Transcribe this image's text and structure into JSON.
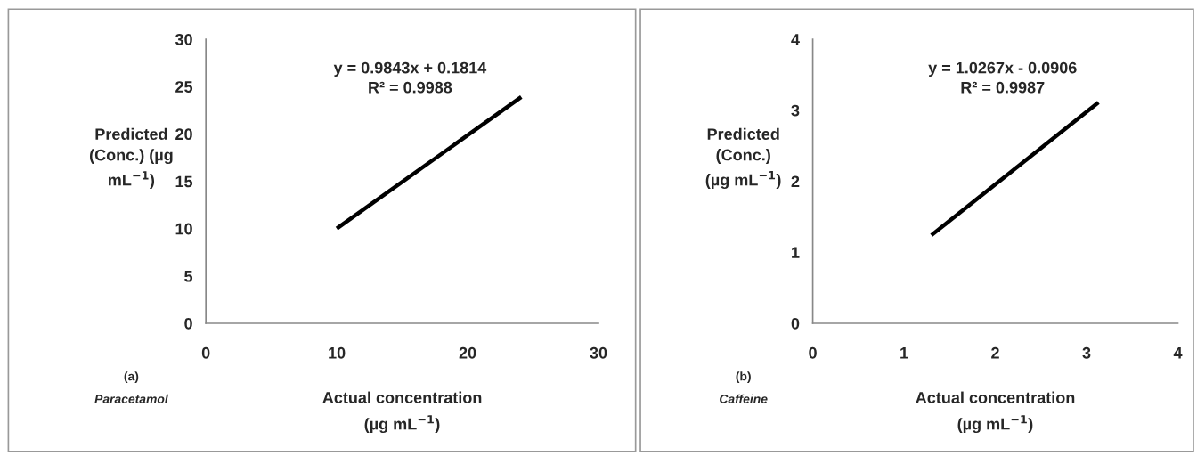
{
  "chart_data": [
    {
      "type": "line",
      "xlabel": "Actual concentration\n(µg mL$^{−1}$)",
      "ylabel": "Predicted\n(Conc.) (µg\nmL$^{−1}$)",
      "annotations": [
        "y = 0.9843x + 0.1814\nR² = 0.9988",
        "(a)",
        "Paracetamol"
      ],
      "x": [
        10,
        24.1
      ],
      "series": [
        {
          "color": "#000000",
          "values": [
            10,
            23.9
          ]
        }
      ],
      "xlim": [
        0,
        30
      ],
      "xticks": [
        0,
        10,
        20,
        30
      ],
      "ylim": [
        0,
        30
      ],
      "yticks": [
        0,
        5,
        10,
        15,
        20,
        25,
        30
      ],
      "grid": false,
      "marker": "none",
      "line_style": "solid"
    },
    {
      "type": "line",
      "xlabel": "Actual concentration\n(µg mL$^{−1}$)",
      "ylabel": "Predicted\n(Conc.)\n(µg mL$^{−1}$)",
      "annotations": [
        "y = 1.0267x - 0.0906\nR² = 0.9987",
        "(b)",
        "Caffeine"
      ],
      "x": [
        1.3,
        3.13
      ],
      "series": [
        {
          "color": "#000000",
          "values": [
            1.24,
            3.11
          ]
        }
      ],
      "xlim": [
        0,
        4
      ],
      "xticks": [
        0,
        1,
        2,
        3,
        4
      ],
      "ylim": [
        0,
        4
      ],
      "yticks": [
        0,
        1,
        2,
        3,
        4
      ],
      "grid": false,
      "marker": "none",
      "line_style": "solid"
    }
  ]
}
